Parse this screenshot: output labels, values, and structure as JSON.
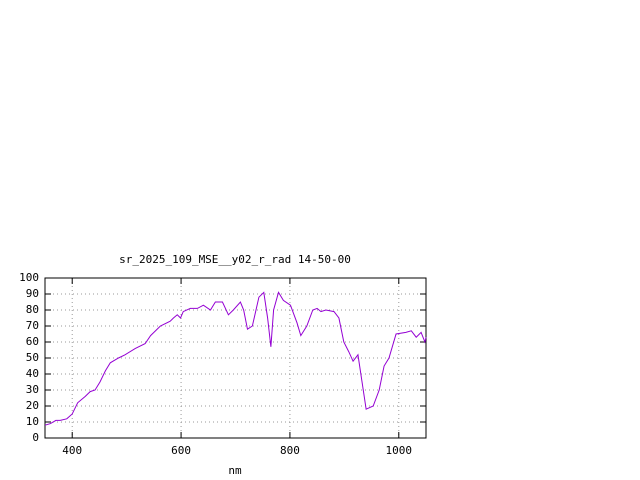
{
  "chart_data": {
    "type": "line",
    "title": "sr_2025_109_MSE__y02_r_rad 14-50-00",
    "x_label": "nm",
    "xlim": [
      350,
      1050
    ],
    "ylim": [
      0,
      100
    ],
    "xticks": [
      400,
      600,
      800,
      1000
    ],
    "yticks": [
      0,
      10,
      20,
      30,
      40,
      50,
      60,
      70,
      80,
      90,
      100
    ],
    "grid": true,
    "series": [
      {
        "color": "#9400d3",
        "x": [
          350,
          360,
          370,
          378,
          390,
          400,
          410,
          424,
          433,
          442,
          451,
          461,
          470,
          485,
          497,
          516,
          534,
          544,
          562,
          580,
          586,
          593,
          599,
          604,
          617,
          630,
          641,
          654,
          663,
          676,
          687,
          696,
          709,
          715,
          722,
          731,
          743,
          752,
          759,
          765,
          770,
          779,
          788,
          801,
          813,
          820,
          831,
          842,
          850,
          857,
          866,
          881,
          890,
          899,
          908,
          916,
          925,
          940,
          953,
          964,
          973,
          982,
          995,
          1013,
          1023,
          1032,
          1041,
          1048,
          1050
        ],
        "values": [
          8,
          9,
          11,
          11,
          12,
          15,
          22,
          26,
          29,
          30,
          35,
          42,
          47,
          50,
          52,
          56,
          59,
          64,
          70,
          73,
          75,
          77,
          75,
          79,
          81,
          81,
          83,
          80,
          85,
          85,
          77,
          80,
          85,
          80,
          68,
          70,
          88,
          91,
          75,
          57,
          80,
          91,
          86,
          83,
          72,
          64,
          70,
          80,
          81,
          79,
          80,
          79,
          75,
          60,
          54,
          48,
          52,
          18,
          20,
          30,
          45,
          50,
          65,
          66,
          67,
          63,
          66,
          60,
          63
        ]
      }
    ]
  }
}
